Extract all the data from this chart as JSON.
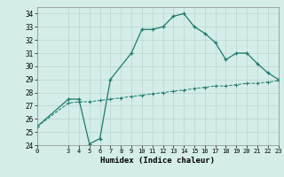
{
  "title": "",
  "xlabel": "Humidex (Indice chaleur)",
  "bg_color": "#d4ede8",
  "grid_color": "#c0d8d4",
  "line_color": "#1a7a6e",
  "xlim": [
    0,
    23
  ],
  "ylim": [
    24,
    34.5
  ],
  "yticks": [
    24,
    25,
    26,
    27,
    28,
    29,
    30,
    31,
    32,
    33,
    34
  ],
  "xticks": [
    0,
    3,
    4,
    5,
    6,
    7,
    8,
    9,
    10,
    11,
    12,
    13,
    14,
    15,
    16,
    17,
    18,
    19,
    20,
    21,
    22,
    23
  ],
  "line1_x": [
    0,
    3,
    4,
    5,
    6,
    7,
    9,
    10,
    11,
    12,
    13,
    14,
    15,
    16,
    17,
    18,
    19,
    20,
    21,
    22,
    23
  ],
  "line1_y": [
    25.4,
    27.5,
    27.5,
    24.1,
    24.5,
    29.0,
    31.0,
    32.8,
    32.8,
    33.0,
    33.8,
    34.0,
    33.0,
    32.5,
    31.8,
    30.5,
    31.0,
    31.0,
    30.2,
    29.5,
    29.0
  ],
  "line2_x": [
    0,
    3,
    4,
    5,
    6,
    7,
    8,
    9,
    10,
    11,
    12,
    13,
    14,
    15,
    16,
    17,
    18,
    19,
    20,
    21,
    22,
    23
  ],
  "line2_y": [
    25.4,
    27.2,
    27.3,
    27.3,
    27.4,
    27.5,
    27.6,
    27.7,
    27.8,
    27.9,
    28.0,
    28.1,
    28.2,
    28.3,
    28.4,
    28.5,
    28.5,
    28.6,
    28.7,
    28.7,
    28.8,
    28.9
  ]
}
